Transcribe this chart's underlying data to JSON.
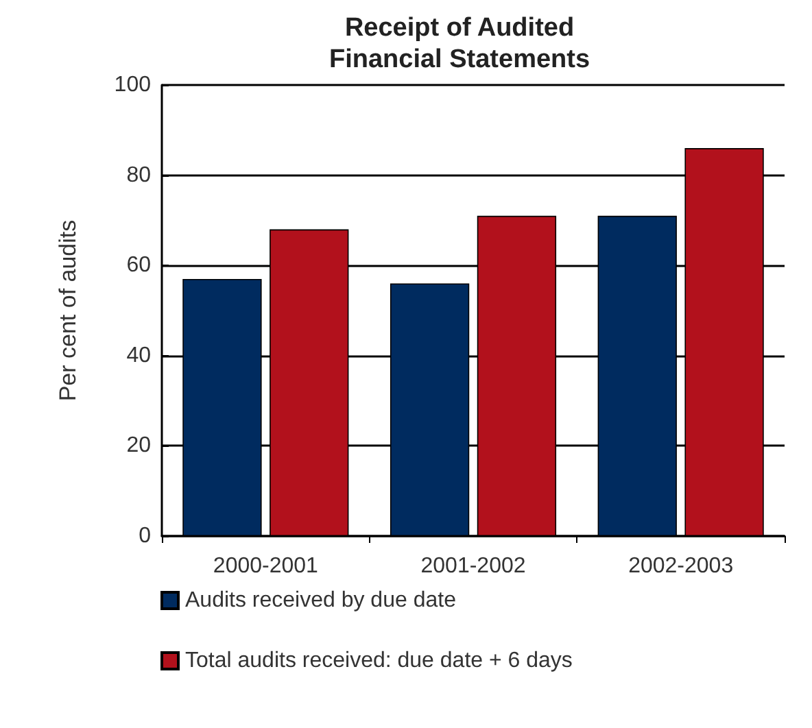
{
  "chart_data": {
    "type": "bar",
    "title": "Receipt of Audited\nFinancial Statements",
    "ylabel": "Per cent of audits",
    "categories": [
      "2000-2001",
      "2001-2002",
      "2002-2003"
    ],
    "series": [
      {
        "name": "Audits received by due date",
        "color": "#002b5f",
        "values": [
          57,
          56,
          71
        ]
      },
      {
        "name": "Total audits received: due date + 6 days",
        "color": "#b2111c",
        "values": [
          68,
          71,
          86
        ]
      }
    ],
    "ylim": [
      0,
      100
    ],
    "yticks": [
      0,
      20,
      40,
      60,
      80,
      100
    ],
    "grid": "y",
    "legend": "bottom"
  }
}
